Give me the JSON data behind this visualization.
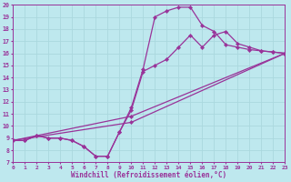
{
  "xlabel": "Windchill (Refroidissement éolien,°C)",
  "xlim": [
    0,
    23
  ],
  "ylim": [
    7,
    20
  ],
  "xticks": [
    0,
    1,
    2,
    3,
    4,
    5,
    6,
    7,
    8,
    9,
    10,
    11,
    12,
    13,
    14,
    15,
    16,
    17,
    18,
    19,
    20,
    21,
    22,
    23
  ],
  "yticks": [
    7,
    8,
    9,
    10,
    11,
    12,
    13,
    14,
    15,
    16,
    17,
    18,
    19,
    20
  ],
  "bg_color": "#bee8ee",
  "line_color": "#993399",
  "grid_color": "#aad8de",
  "line1_x": [
    0,
    1,
    2,
    3,
    4,
    5,
    6,
    7,
    8,
    9,
    10,
    11,
    12,
    13,
    14,
    15,
    16,
    17,
    18,
    19,
    20,
    21,
    22,
    23
  ],
  "line1_y": [
    8.8,
    8.8,
    9.2,
    9.0,
    9.0,
    8.8,
    8.3,
    7.5,
    7.5,
    9.5,
    11.5,
    14.7,
    19.0,
    19.5,
    19.8,
    19.8,
    18.3,
    17.8,
    16.7,
    16.5,
    16.3,
    16.2,
    16.1,
    16.0
  ],
  "line2_x": [
    0,
    1,
    2,
    3,
    4,
    5,
    6,
    7,
    8,
    9,
    10,
    11,
    12,
    13,
    14,
    15,
    16,
    17,
    18,
    19,
    20,
    21,
    22,
    23
  ],
  "line2_y": [
    8.8,
    8.8,
    9.2,
    9.0,
    9.0,
    8.8,
    8.3,
    7.5,
    7.5,
    9.5,
    11.3,
    14.5,
    15.0,
    15.5,
    16.5,
    17.5,
    16.5,
    17.5,
    17.8,
    16.8,
    16.5,
    16.2,
    16.1,
    16.0
  ],
  "line3_x": [
    0,
    10,
    23
  ],
  "line3_y": [
    8.8,
    10.8,
    16.0
  ],
  "line4_x": [
    0,
    10,
    23
  ],
  "line4_y": [
    8.8,
    10.3,
    16.0
  ],
  "marker": "D",
  "markersize": 2.2,
  "linewidth": 0.9
}
